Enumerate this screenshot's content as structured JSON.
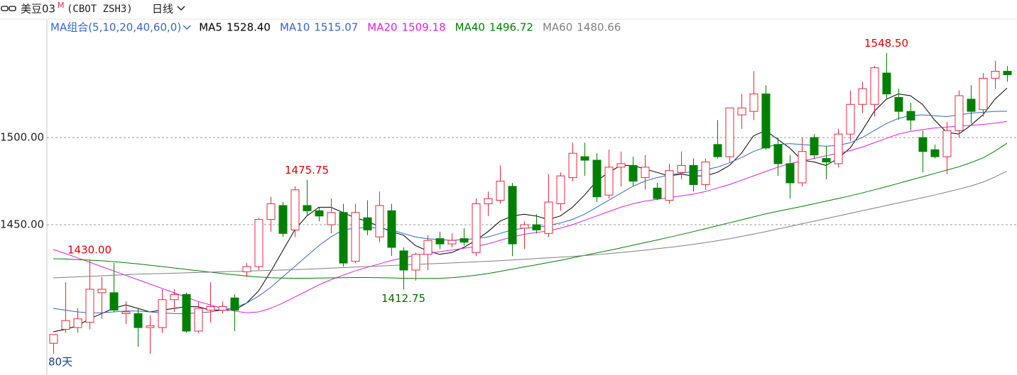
{
  "header": {
    "title": "美豆03",
    "superscript": "M",
    "code": "(CBOT ZSH3)",
    "period": "日线"
  },
  "chart_data": {
    "type": "candlestick",
    "ma_label": "MA组合(5,10,20,40,60,0)",
    "days_label": "80天",
    "ylim": [
      1363.8,
      1567.5
    ],
    "yticks": [
      {
        "value": 1450,
        "label": "1450.00"
      },
      {
        "value": 1500,
        "label": "1500.00"
      }
    ],
    "grid": true,
    "up_color": "#e8283c",
    "down_color": "#008000",
    "open": [
      1382,
      1390,
      1391,
      1394,
      1411,
      1411,
      1399,
      1399,
      1391,
      1391,
      1407,
      1410,
      1389,
      1401,
      1401,
      1408,
      1423,
      1426,
      1453,
      1461,
      1447,
      1461,
      1458,
      1450,
      1457,
      1429,
      1454,
      1443,
      1458,
      1435,
      1424,
      1433,
      1442,
      1439,
      1442,
      1434,
      1462,
      1464,
      1472,
      1448,
      1450,
      1445,
      1462,
      1477,
      1489,
      1487,
      1467,
      1483,
      1484,
      1477,
      1471,
      1464,
      1480,
      1484,
      1473,
      1496,
      1489,
      1513,
      1515,
      1525,
      1496,
      1485,
      1474,
      1500,
      1488,
      1485,
      1502,
      1519,
      1519,
      1537,
      1523,
      1515,
      1500,
      1493,
      1489,
      1504,
      1522,
      1516,
      1534,
      1538
    ],
    "high": [
      1387,
      1417,
      1402,
      1430,
      1420,
      1428,
      1406,
      1402,
      1398,
      1413,
      1413,
      1411,
      1406,
      1417,
      1406,
      1410,
      1428,
      1454,
      1466,
      1463,
      1472,
      1475.75,
      1460,
      1465,
      1462,
      1462,
      1464,
      1469,
      1462,
      1437,
      1434,
      1444,
      1446,
      1445,
      1448,
      1465,
      1469,
      1484,
      1474,
      1452,
      1456,
      1479,
      1480,
      1497,
      1497,
      1491,
      1493,
      1492,
      1489,
      1490,
      1474,
      1485,
      1492,
      1488,
      1488,
      1510,
      1517,
      1525,
      1538,
      1530,
      1500,
      1490,
      1500,
      1502,
      1495,
      1505,
      1527,
      1532,
      1541,
      1548.5,
      1528,
      1520,
      1504,
      1496,
      1509,
      1527,
      1530,
      1537,
      1544,
      1541
    ],
    "low": [
      1376,
      1388,
      1388,
      1390,
      1396,
      1400,
      1393,
      1380,
      1376,
      1388,
      1400,
      1388,
      1388,
      1394,
      1399,
      1389,
      1420,
      1424,
      1446,
      1443,
      1443,
      1455,
      1452,
      1445,
      1426,
      1428,
      1444,
      1440,
      1432,
      1412.75,
      1418,
      1424,
      1436,
      1437,
      1438,
      1432,
      1455,
      1462,
      1432,
      1436,
      1445,
      1443,
      1458,
      1475,
      1478,
      1463,
      1465,
      1472,
      1472,
      1470,
      1464,
      1462,
      1476,
      1469,
      1470,
      1488,
      1486,
      1505,
      1510,
      1493,
      1478,
      1465,
      1472,
      1488,
      1476,
      1483,
      1498,
      1514,
      1512,
      1522,
      1510,
      1504,
      1480,
      1488,
      1479,
      1500,
      1508,
      1512,
      1528,
      1532
    ],
    "close": [
      1387,
      1395,
      1396,
      1413,
      1413,
      1401,
      1400,
      1391,
      1392,
      1407,
      1410,
      1389,
      1402,
      1403,
      1403,
      1401,
      1426,
      1453,
      1462,
      1445,
      1470,
      1458,
      1455,
      1457,
      1428,
      1457,
      1447,
      1461,
      1437,
      1424,
      1433,
      1441,
      1439,
      1441,
      1440,
      1462,
      1465,
      1475,
      1439,
      1450,
      1447,
      1463,
      1478,
      1491,
      1487,
      1466,
      1483,
      1485,
      1475,
      1483,
      1465,
      1481,
      1484,
      1473,
      1486,
      1489,
      1517,
      1517,
      1525,
      1494,
      1485,
      1474,
      1492,
      1490,
      1486,
      1502,
      1519,
      1528,
      1540,
      1525,
      1515,
      1510,
      1492,
      1489,
      1504,
      1524,
      1515,
      1534,
      1538,
      1536
    ],
    "annotations": [
      {
        "value": 1430,
        "label": "1430.00"
      },
      {
        "value": 1475.75,
        "label": "1475.75"
      },
      {
        "value": 1412.75,
        "label": "1412.75"
      },
      {
        "value": 1548.5,
        "label": "1548.50"
      }
    ],
    "series": [
      {
        "name": "MA5",
        "latest": "1528.40",
        "color": "#000000",
        "values": [
          1388.6,
          1390,
          1392,
          1396,
          1399,
          1402,
          1404,
          1402,
          1400,
          1401,
          1402,
          1403,
          1403,
          1401,
          1401,
          1401,
          1405,
          1412,
          1423,
          1435,
          1447,
          1455,
          1460,
          1460,
          1457,
          1454,
          1452,
          1449,
          1446,
          1444,
          1438,
          1435,
          1433,
          1434,
          1437,
          1441,
          1446,
          1452,
          1455,
          1456,
          1455,
          1453,
          1455,
          1460,
          1467,
          1475,
          1480,
          1484,
          1484,
          1482,
          1480,
          1478,
          1479,
          1478,
          1478,
          1480,
          1484,
          1491,
          1501,
          1504,
          1499,
          1494,
          1487,
          1486,
          1484,
          1488,
          1494,
          1504,
          1515,
          1522,
          1525,
          1524,
          1519,
          1510,
          1503,
          1502,
          1507,
          1513,
          1522,
          1528.4
        ]
      },
      {
        "name": "MA10",
        "latest": "1515.07",
        "color": "#3366cc",
        "values": [
          1402,
          1401,
          1400,
          1399.5,
          1399.5,
          1400,
          1400.5,
          1400.5,
          1400,
          1399.5,
          1399,
          1399,
          1399.5,
          1400,
          1401,
          1402.5,
          1405,
          1409,
          1414,
          1420,
          1426,
          1432,
          1438,
          1443,
          1447,
          1448,
          1448.5,
          1448,
          1447,
          1445,
          1443,
          1442,
          1441.5,
          1441,
          1441.5,
          1442,
          1443,
          1445,
          1447,
          1448,
          1448.5,
          1449.5,
          1451,
          1453,
          1456,
          1460,
          1464,
          1468,
          1472,
          1475,
          1477,
          1478.5,
          1479.5,
          1480.5,
          1481.5,
          1483,
          1485.5,
          1488.5,
          1492,
          1494.5,
          1496,
          1496.5,
          1496,
          1495.5,
          1495,
          1495.5,
          1497,
          1500,
          1504,
          1508,
          1511,
          1512.5,
          1513,
          1512.5,
          1512,
          1513,
          1514,
          1514.5,
          1515,
          1515.07
        ]
      },
      {
        "name": "MA20",
        "latest": "1509.18",
        "color": "#e020e0",
        "values": [
          1435.8,
          1433.5,
          1431,
          1428.5,
          1426,
          1423.5,
          1421,
          1418.5,
          1416,
          1413.5,
          1411,
          1408.5,
          1406,
          1404,
          1402,
          1400.5,
          1399.5,
          1400,
          1402,
          1405,
          1408.5,
          1412,
          1415.5,
          1418.5,
          1421,
          1423.5,
          1425.5,
          1427.5,
          1429.5,
          1431,
          1432.5,
          1433.5,
          1434.5,
          1435.5,
          1436.5,
          1437.5,
          1439,
          1441,
          1443,
          1444.5,
          1445.5,
          1446.5,
          1448,
          1450,
          1452.5,
          1455,
          1457.5,
          1460,
          1462,
          1463.5,
          1464.5,
          1465.5,
          1466.5,
          1467.5,
          1469,
          1471,
          1473,
          1475.5,
          1478,
          1480.5,
          1483,
          1485,
          1486.5,
          1488,
          1489.5,
          1491,
          1492.5,
          1494.5,
          1497,
          1499.5,
          1502,
          1503.5,
          1504.5,
          1505.5,
          1506,
          1506.5,
          1507,
          1507.5,
          1508.3,
          1509.18
        ]
      },
      {
        "name": "MA40",
        "latest": "1496.72",
        "color": "#008000",
        "values": [
          1430.5,
          1430.3,
          1430,
          1429.7,
          1429.3,
          1428.8,
          1428.2,
          1427.5,
          1426.8,
          1426,
          1425.2,
          1424.4,
          1423.6,
          1422.8,
          1422,
          1421.3,
          1420.6,
          1420,
          1419.6,
          1419.4,
          1419.3,
          1419.3,
          1419.4,
          1419.5,
          1419.6,
          1419.7,
          1419.7,
          1419.6,
          1419.5,
          1419.3,
          1419.2,
          1419.2,
          1419.3,
          1419.6,
          1420.2,
          1421,
          1422,
          1423.2,
          1424.5,
          1425.8,
          1427,
          1428.3,
          1429.6,
          1431,
          1432.4,
          1433.8,
          1435.2,
          1436.7,
          1438.2,
          1439.7,
          1441.2,
          1442.8,
          1444.4,
          1446,
          1447.7,
          1449.4,
          1451.1,
          1452.8,
          1454.5,
          1456.2,
          1457.7,
          1459.1,
          1460.5,
          1462,
          1463.5,
          1465,
          1466.6,
          1468.2,
          1470,
          1471.8,
          1473.7,
          1475.6,
          1477.5,
          1479.4,
          1481.3,
          1483.2,
          1485.6,
          1488.3,
          1492.2,
          1496.72
        ]
      },
      {
        "name": "MA60",
        "latest": "1480.66",
        "color": "#808080",
        "values": [
          1419.5,
          1419.8,
          1420.1,
          1420.4,
          1420.7,
          1421,
          1421.3,
          1421.6,
          1421.8,
          1422,
          1422.2,
          1422.4,
          1422.6,
          1422.8,
          1423,
          1423.2,
          1423.4,
          1423.6,
          1423.8,
          1424,
          1424.2,
          1424.5,
          1424.8,
          1425.1,
          1425.4,
          1425.7,
          1426,
          1426.3,
          1426.6,
          1426.9,
          1427.2,
          1427.5,
          1427.8,
          1428.1,
          1428.4,
          1428.7,
          1429,
          1429.4,
          1429.8,
          1430.2,
          1430.6,
          1431,
          1431.4,
          1431.8,
          1432.3,
          1432.8,
          1433.4,
          1434,
          1434.7,
          1435.4,
          1436.2,
          1437,
          1437.8,
          1438.7,
          1439.7,
          1440.8,
          1442,
          1443.3,
          1444.6,
          1446,
          1447.5,
          1449,
          1450.5,
          1452,
          1453.5,
          1455,
          1456.5,
          1458,
          1459.5,
          1461,
          1462.5,
          1464,
          1465.5,
          1467,
          1468.7,
          1470.4,
          1472.2,
          1474.4,
          1477.4,
          1480.66
        ]
      }
    ]
  }
}
